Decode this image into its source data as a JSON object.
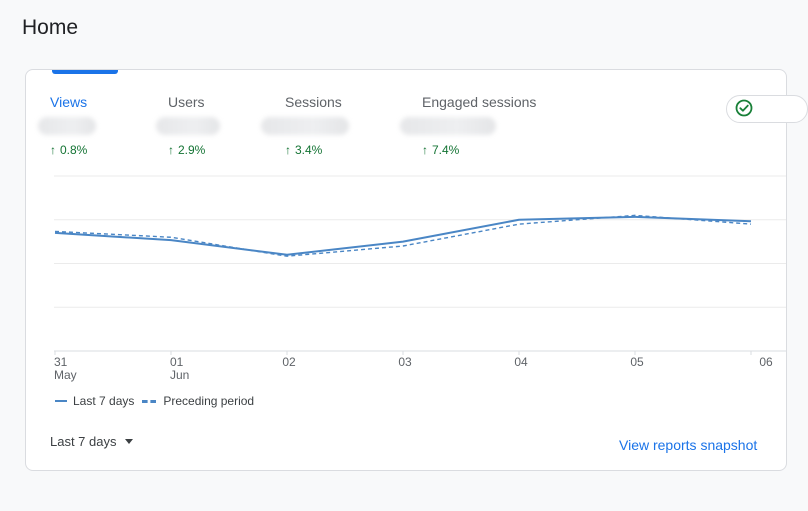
{
  "page": {
    "title": "Home"
  },
  "metrics": [
    {
      "label": "Views",
      "change": "0.8%",
      "active": true
    },
    {
      "label": "Users",
      "change": "2.9%",
      "active": false
    },
    {
      "label": "Sessions",
      "change": "3.4%",
      "active": false
    },
    {
      "label": "Engaged sessions",
      "change": "7.4%",
      "active": false
    }
  ],
  "colors": {
    "accent": "#1a73e8",
    "positive": "#137333",
    "series": "#4a86c5"
  },
  "icons": {
    "change_arrow": "arrow-up-icon",
    "status": "check-circle-icon"
  },
  "legend": {
    "current": "Last 7 days",
    "previous": "Preceding period"
  },
  "date_range": {
    "label": "Last 7 days"
  },
  "link": {
    "view_reports": "View reports snapshot"
  },
  "chart_data": {
    "type": "line",
    "x_tick_labels": [
      [
        "31",
        "May"
      ],
      [
        "01",
        "Jun"
      ],
      [
        "02",
        ""
      ],
      [
        "03",
        ""
      ],
      [
        "04",
        ""
      ],
      [
        "05",
        ""
      ],
      [
        "06",
        ""
      ]
    ],
    "series": [
      {
        "name": "Last 7 days",
        "style": "solid",
        "values": [
          0.81,
          0.76,
          0.66,
          0.75,
          0.9,
          0.92,
          0.89
        ]
      },
      {
        "name": "Preceding period",
        "style": "dashed",
        "values": [
          0.82,
          0.78,
          0.65,
          0.72,
          0.87,
          0.93,
          0.87
        ]
      }
    ],
    "ylim": [
      0,
      1.2
    ],
    "y_gridlines": 4,
    "y_tick_labels_visible": false,
    "grid": true,
    "legend_position": "bottom-left"
  }
}
